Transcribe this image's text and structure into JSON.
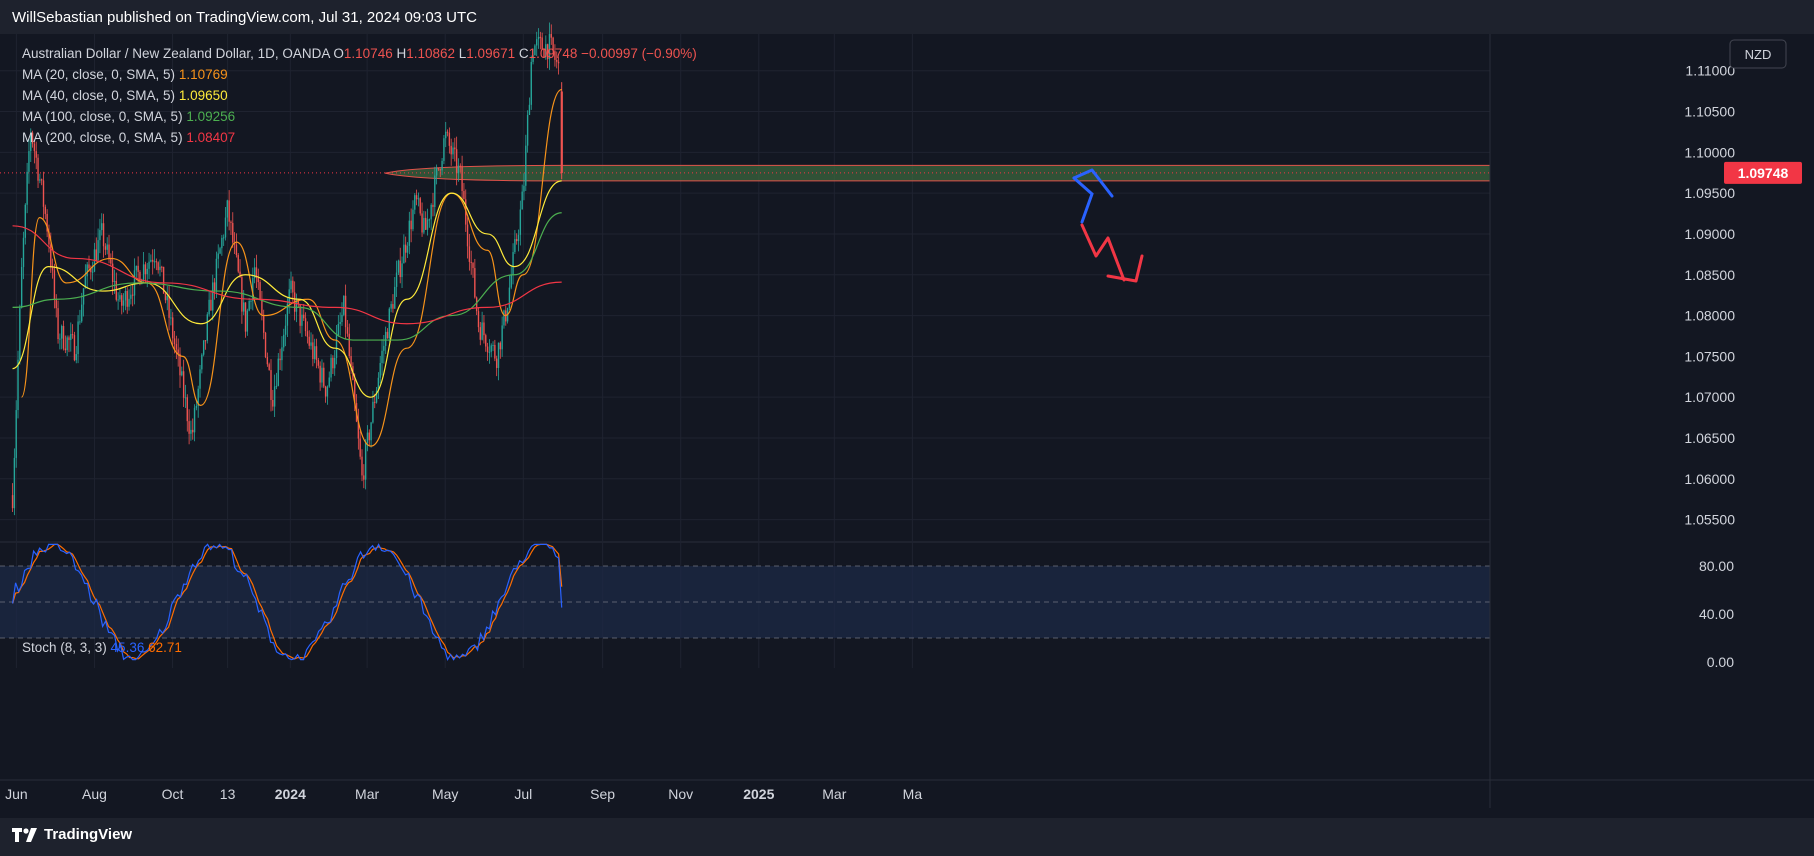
{
  "header": {
    "published": "WillSebastian published on TradingView.com, Jul 31, 2024 09:03 UTC"
  },
  "footer": {
    "brand": "TradingView"
  },
  "legend": {
    "symbol": "Australian Dollar / New Zealand Dollar, 1D, OANDA",
    "ohlc": [
      {
        "k": "O",
        "v": "1.10746"
      },
      {
        "k": "H",
        "v": "1.10862"
      },
      {
        "k": "L",
        "v": "1.09671"
      },
      {
        "k": "C",
        "v": "1.09748"
      }
    ],
    "change": "−0.00997 (−0.90%)",
    "mas": [
      {
        "label": "MA (20, close, 0, SMA, 5)",
        "value": "1.10769",
        "color": "#f7931a"
      },
      {
        "label": "MA (40, close, 0, SMA, 5)",
        "value": "1.09650",
        "color": "#ffeb3b"
      },
      {
        "label": "MA (100, close, 0, SMA, 5)",
        "value": "1.09256",
        "color": "#4caf50"
      },
      {
        "label": "MA (200, close, 0, SMA, 5)",
        "value": "1.08407",
        "color": "#f23645"
      }
    ],
    "stoch": {
      "label": "Stoch (8, 3, 3)",
      "k": "45.36",
      "d": "62.71"
    }
  },
  "currency_button": "NZD",
  "colors": {
    "up": "#26a69a",
    "down": "#ef5350",
    "k": "#2962ff",
    "d": "#ff6d00",
    "zone": "#3d6b3f",
    "blue_arrow": "#2962ff",
    "red_arrow": "#f23645"
  },
  "chart_data": {
    "type": "candlestick",
    "symbol": "AUDNZD",
    "timeframe": "1D",
    "price_axis": {
      "ticks": [
        "1.11000",
        "1.10500",
        "1.10000",
        "1.09500",
        "1.09000",
        "1.08500",
        "1.08000",
        "1.07500",
        "1.07000",
        "1.06500",
        "1.06000",
        "1.05500"
      ],
      "range": [
        1.0525,
        1.1145
      ]
    },
    "time_axis": {
      "ticks": [
        "Jun",
        "Aug",
        "Oct",
        "13",
        "2024",
        "Mar",
        "May",
        "Jul",
        "Sep",
        "Nov",
        "2025",
        "Mar",
        "Ma"
      ],
      "bold": [
        "2024",
        "2025"
      ]
    },
    "last_price": "1.09748",
    "zone": {
      "low": 1.0965,
      "high": 1.0984
    },
    "price_path": [
      [
        "2023-05-29",
        1.058
      ],
      [
        "2023-06-05",
        1.085
      ],
      [
        "2023-06-12",
        1.103
      ],
      [
        "2023-06-19",
        1.097
      ],
      [
        "2023-06-26",
        1.09
      ],
      [
        "2023-07-03",
        1.078
      ],
      [
        "2023-07-17",
        1.076
      ],
      [
        "2023-07-24",
        1.084
      ],
      [
        "2023-08-07",
        1.09
      ],
      [
        "2023-08-21",
        1.081
      ],
      [
        "2023-09-04",
        1.085
      ],
      [
        "2023-09-18",
        1.088
      ],
      [
        "2023-10-02",
        1.077
      ],
      [
        "2023-10-16",
        1.065
      ],
      [
        "2023-10-30",
        1.081
      ],
      [
        "2023-11-06",
        1.087
      ],
      [
        "2023-11-13",
        1.093
      ],
      [
        "2023-11-27",
        1.079
      ],
      [
        "2023-12-04",
        1.086
      ],
      [
        "2023-12-18",
        1.07
      ],
      [
        "2024-01-01",
        1.083
      ],
      [
        "2024-01-15",
        1.077
      ],
      [
        "2024-01-29",
        1.071
      ],
      [
        "2024-02-12",
        1.081
      ],
      [
        "2024-02-26",
        1.06
      ],
      [
        "2024-03-11",
        1.074
      ],
      [
        "2024-03-25",
        1.085
      ],
      [
        "2024-04-08",
        1.094
      ],
      [
        "2024-04-15",
        1.09
      ],
      [
        "2024-05-01",
        1.102
      ],
      [
        "2024-05-13",
        1.097
      ],
      [
        "2024-05-27",
        1.079
      ],
      [
        "2024-06-10",
        1.075
      ],
      [
        "2024-06-17",
        1.08
      ],
      [
        "2024-07-01",
        1.095
      ],
      [
        "2024-07-08",
        1.113
      ],
      [
        "2024-07-22",
        1.113
      ],
      [
        "2024-07-29",
        1.11
      ],
      [
        "2024-07-31",
        1.0975
      ]
    ],
    "moving_averages": [
      {
        "name": "MA 20",
        "color": "#f7931a",
        "path": [
          [
            "2023-06-05",
            1.07
          ],
          [
            "2023-06-19",
            1.092
          ],
          [
            "2023-07-10",
            1.084
          ],
          [
            "2023-08-14",
            1.087
          ],
          [
            "2023-09-11",
            1.084
          ],
          [
            "2023-10-09",
            1.075
          ],
          [
            "2023-10-23",
            1.069
          ],
          [
            "2023-11-20",
            1.089
          ],
          [
            "2023-12-11",
            1.08
          ],
          [
            "2024-01-15",
            1.082
          ],
          [
            "2024-02-05",
            1.077
          ],
          [
            "2024-03-04",
            1.064
          ],
          [
            "2024-04-01",
            1.076
          ],
          [
            "2024-05-06",
            1.095
          ],
          [
            "2024-06-03",
            1.088
          ],
          [
            "2024-06-17",
            1.08
          ],
          [
            "2024-07-01",
            1.085
          ],
          [
            "2024-07-31",
            1.1077
          ]
        ]
      },
      {
        "name": "MA 40",
        "color": "#ffeb3b",
        "path": [
          [
            "2023-05-29",
            1.0735
          ],
          [
            "2023-06-26",
            1.086
          ],
          [
            "2023-08-07",
            1.083
          ],
          [
            "2023-09-11",
            1.084
          ],
          [
            "2023-10-23",
            1.079
          ],
          [
            "2023-11-27",
            1.085
          ],
          [
            "2024-01-08",
            1.082
          ],
          [
            "2024-02-05",
            1.076
          ],
          [
            "2024-03-04",
            1.07
          ],
          [
            "2024-04-01",
            1.082
          ],
          [
            "2024-05-06",
            1.095
          ],
          [
            "2024-06-03",
            1.09
          ],
          [
            "2024-06-24",
            1.086
          ],
          [
            "2024-07-31",
            1.0965
          ]
        ]
      },
      {
        "name": "MA 100",
        "color": "#4caf50",
        "path": [
          [
            "2023-05-29",
            1.081
          ],
          [
            "2023-07-03",
            1.082
          ],
          [
            "2023-09-04",
            1.084
          ],
          [
            "2023-11-06",
            1.083
          ],
          [
            "2024-01-08",
            1.081
          ],
          [
            "2024-02-19",
            1.077
          ],
          [
            "2024-03-25",
            1.077
          ],
          [
            "2024-05-06",
            1.08
          ],
          [
            "2024-06-24",
            1.085
          ],
          [
            "2024-07-31",
            1.0926
          ]
        ]
      },
      {
        "name": "MA 200",
        "color": "#f23645",
        "path": [
          [
            "2023-05-29",
            1.091
          ],
          [
            "2023-07-17",
            1.087
          ],
          [
            "2023-09-25",
            1.084
          ],
          [
            "2023-12-04",
            1.082
          ],
          [
            "2024-02-05",
            1.081
          ],
          [
            "2024-04-01",
            1.079
          ],
          [
            "2024-06-03",
            1.081
          ],
          [
            "2024-07-31",
            1.0841
          ]
        ]
      }
    ],
    "stochastic": {
      "axis_ticks": [
        "80.00",
        "40.00",
        "0.00"
      ],
      "range": [
        0,
        100
      ],
      "bands": [
        20,
        50,
        80
      ],
      "k": 45.36,
      "d": 62.71
    }
  }
}
